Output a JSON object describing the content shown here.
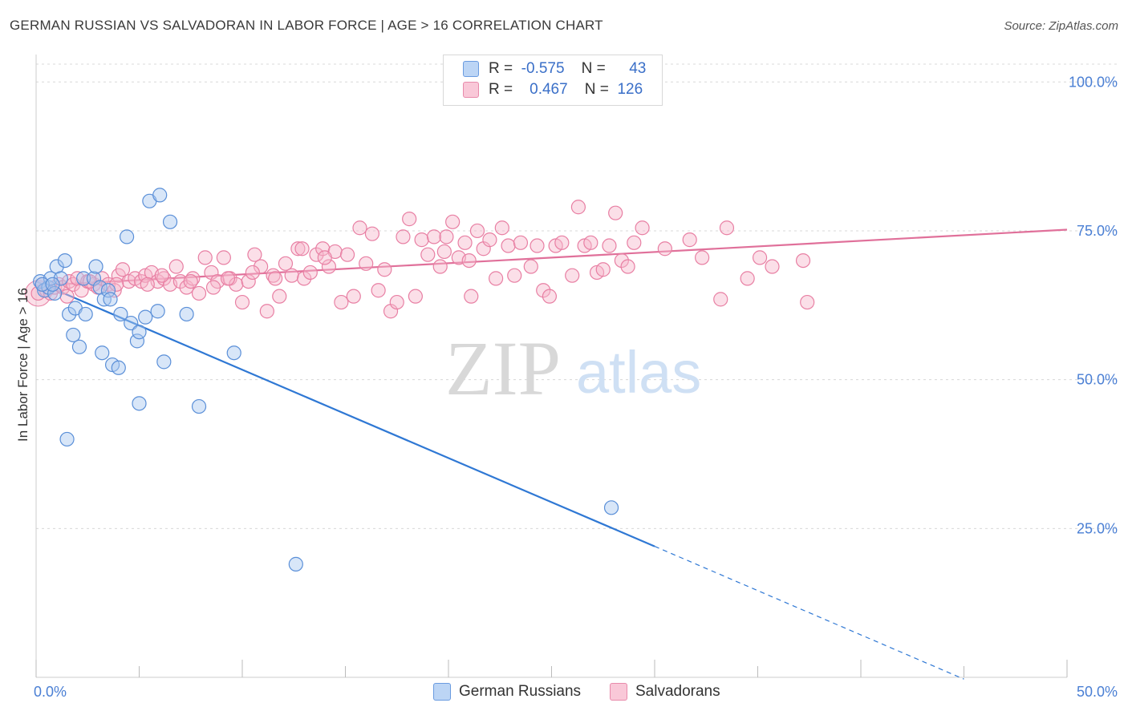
{
  "title": "GERMAN RUSSIAN VS SALVADORAN IN LABOR FORCE | AGE > 16 CORRELATION CHART",
  "source": "Source: ZipAtlas.com",
  "watermark": {
    "zip": "ZIP",
    "atlas": "atlas"
  },
  "legend": {
    "rows": [
      {
        "r_label": "R =",
        "r_value": "-0.575",
        "n_label": "N =",
        "n_value": "43"
      },
      {
        "r_label": "R =",
        "r_value": "0.467",
        "n_label": "N =",
        "n_value": "126"
      }
    ]
  },
  "colors": {
    "blue_fill": "#a8c8f0",
    "blue_stroke": "#5a8fd8",
    "blue_line": "#2f78d4",
    "pink_fill": "#f6b8cc",
    "pink_stroke": "#e87fa3",
    "pink_line": "#e0709a",
    "grid": "#d8d8d8",
    "axis_tick_text": "#4a7fd4"
  },
  "chart_data": {
    "type": "scatter",
    "title": "GERMAN RUSSIAN VS SALVADORAN IN LABOR FORCE | AGE > 16 CORRELATION CHART",
    "xlabel": "",
    "ylabel": "In Labor Force | Age > 16",
    "xlim": [
      0,
      50
    ],
    "ylim": [
      0,
      103
    ],
    "x_ticks": [
      {
        "value": 0,
        "label": "0.0%"
      },
      {
        "value": 50,
        "label": "50.0%"
      }
    ],
    "y_ticks": [
      {
        "value": 25,
        "label": "25.0%"
      },
      {
        "value": 50,
        "label": "50.0%"
      },
      {
        "value": 75,
        "label": "75.0%"
      },
      {
        "value": 100,
        "label": "100.0%"
      }
    ],
    "grid": true,
    "legend_position": "bottom",
    "series": [
      {
        "name": "German Russians",
        "color": "#a8c8f0",
        "points": [
          [
            0.2,
            66.5
          ],
          [
            0.4,
            65.0
          ],
          [
            0.6,
            65.5
          ],
          [
            0.7,
            67.0
          ],
          [
            0.9,
            64.5
          ],
          [
            1.0,
            69.0
          ],
          [
            1.2,
            67.0
          ],
          [
            1.4,
            70.0
          ],
          [
            1.6,
            61.0
          ],
          [
            1.8,
            57.5
          ],
          [
            1.9,
            62.0
          ],
          [
            2.1,
            55.5
          ],
          [
            2.3,
            67.0
          ],
          [
            2.4,
            61.0
          ],
          [
            2.8,
            67.0
          ],
          [
            2.9,
            69.0
          ],
          [
            3.1,
            65.5
          ],
          [
            3.2,
            54.5
          ],
          [
            3.3,
            63.5
          ],
          [
            3.5,
            65.0
          ],
          [
            3.6,
            63.5
          ],
          [
            3.7,
            52.5
          ],
          [
            4.0,
            52.0
          ],
          [
            4.1,
            61.0
          ],
          [
            4.4,
            74.0
          ],
          [
            4.6,
            59.5
          ],
          [
            4.9,
            56.5
          ],
          [
            5.0,
            58.0
          ],
          [
            5.0,
            46.0
          ],
          [
            5.3,
            60.5
          ],
          [
            5.5,
            80.0
          ],
          [
            5.9,
            61.5
          ],
          [
            6.0,
            81.0
          ],
          [
            6.2,
            53.0
          ],
          [
            6.5,
            76.5
          ],
          [
            7.3,
            61.0
          ],
          [
            7.9,
            45.5
          ],
          [
            9.6,
            54.5
          ],
          [
            1.5,
            40.0
          ],
          [
            12.6,
            19.0
          ],
          [
            27.9,
            28.5
          ],
          [
            0.3,
            66.0
          ],
          [
            0.8,
            66.0
          ]
        ],
        "trend": {
          "x0": 0,
          "y0": 66.5,
          "x1": 30.0,
          "y1": 22.0,
          "dash_x1": 45.0,
          "dash_y1": -0.3
        }
      },
      {
        "name": "Salvadorans",
        "color": "#f6b8cc",
        "points": [
          [
            0.1,
            64.5
          ],
          [
            0.3,
            66.0
          ],
          [
            0.5,
            65.0
          ],
          [
            0.7,
            64.5
          ],
          [
            0.9,
            65.5
          ],
          [
            1.1,
            66.0
          ],
          [
            1.3,
            65.5
          ],
          [
            1.6,
            66.5
          ],
          [
            1.8,
            66.0
          ],
          [
            2.0,
            67.0
          ],
          [
            2.2,
            65.0
          ],
          [
            2.5,
            66.5
          ],
          [
            2.8,
            66.0
          ],
          [
            3.0,
            65.5
          ],
          [
            3.2,
            67.0
          ],
          [
            3.5,
            66.0
          ],
          [
            3.8,
            65.0
          ],
          [
            4.0,
            67.5
          ],
          [
            4.2,
            68.5
          ],
          [
            4.5,
            66.5
          ],
          [
            4.8,
            67.0
          ],
          [
            5.1,
            66.5
          ],
          [
            5.3,
            67.5
          ],
          [
            5.6,
            68.0
          ],
          [
            5.9,
            66.5
          ],
          [
            6.2,
            67.0
          ],
          [
            6.5,
            66.0
          ],
          [
            6.8,
            69.0
          ],
          [
            7.0,
            66.5
          ],
          [
            7.3,
            65.5
          ],
          [
            7.6,
            67.0
          ],
          [
            7.9,
            64.5
          ],
          [
            8.2,
            70.5
          ],
          [
            8.5,
            68.0
          ],
          [
            8.8,
            66.5
          ],
          [
            9.1,
            70.5
          ],
          [
            9.4,
            67.0
          ],
          [
            9.7,
            66.0
          ],
          [
            10.0,
            63.0
          ],
          [
            10.3,
            66.5
          ],
          [
            10.6,
            71.0
          ],
          [
            10.9,
            69.0
          ],
          [
            11.2,
            61.5
          ],
          [
            11.5,
            67.5
          ],
          [
            11.8,
            64.0
          ],
          [
            12.1,
            69.5
          ],
          [
            12.4,
            67.5
          ],
          [
            12.7,
            72.0
          ],
          [
            13.0,
            67.0
          ],
          [
            13.3,
            68.0
          ],
          [
            13.6,
            71.0
          ],
          [
            13.9,
            72.0
          ],
          [
            14.2,
            69.0
          ],
          [
            14.5,
            71.5
          ],
          [
            14.8,
            63.0
          ],
          [
            15.1,
            71.0
          ],
          [
            15.4,
            64.0
          ],
          [
            15.7,
            75.5
          ],
          [
            16.0,
            69.5
          ],
          [
            16.3,
            74.5
          ],
          [
            16.6,
            65.0
          ],
          [
            16.9,
            68.5
          ],
          [
            17.2,
            61.5
          ],
          [
            17.5,
            63.0
          ],
          [
            17.8,
            74.0
          ],
          [
            18.1,
            77.0
          ],
          [
            18.4,
            64.0
          ],
          [
            18.7,
            73.5
          ],
          [
            19.0,
            71.0
          ],
          [
            19.3,
            74.0
          ],
          [
            19.6,
            69.0
          ],
          [
            19.9,
            74.0
          ],
          [
            20.2,
            76.5
          ],
          [
            20.5,
            70.5
          ],
          [
            20.8,
            73.0
          ],
          [
            21.1,
            64.0
          ],
          [
            21.4,
            75.0
          ],
          [
            21.7,
            72.0
          ],
          [
            22.0,
            73.5
          ],
          [
            22.3,
            67.0
          ],
          [
            22.6,
            75.5
          ],
          [
            22.9,
            72.5
          ],
          [
            23.2,
            67.5
          ],
          [
            23.5,
            73.0
          ],
          [
            24.0,
            69.0
          ],
          [
            24.3,
            72.5
          ],
          [
            24.6,
            65.0
          ],
          [
            24.9,
            64.0
          ],
          [
            25.2,
            72.5
          ],
          [
            25.5,
            73.0
          ],
          [
            26.0,
            67.5
          ],
          [
            26.3,
            79.0
          ],
          [
            26.6,
            72.5
          ],
          [
            26.9,
            73.0
          ],
          [
            27.2,
            68.0
          ],
          [
            27.5,
            68.5
          ],
          [
            27.8,
            72.5
          ],
          [
            28.1,
            78.0
          ],
          [
            28.4,
            70.0
          ],
          [
            28.7,
            69.0
          ],
          [
            29.0,
            73.0
          ],
          [
            29.4,
            75.5
          ],
          [
            30.5,
            72.0
          ],
          [
            31.7,
            73.5
          ],
          [
            32.3,
            70.5
          ],
          [
            33.2,
            63.5
          ],
          [
            33.5,
            75.5
          ],
          [
            34.5,
            67.0
          ],
          [
            35.1,
            70.5
          ],
          [
            35.7,
            69.0
          ],
          [
            37.2,
            70.0
          ],
          [
            37.4,
            63.0
          ],
          [
            1.5,
            64.0
          ],
          [
            2.6,
            66.5
          ],
          [
            3.9,
            66.0
          ],
          [
            5.4,
            66.0
          ],
          [
            6.1,
            67.5
          ],
          [
            7.5,
            66.5
          ],
          [
            8.6,
            65.5
          ],
          [
            9.3,
            67.0
          ],
          [
            10.5,
            68.0
          ],
          [
            11.6,
            67.0
          ],
          [
            12.9,
            72.0
          ],
          [
            14.0,
            70.5
          ],
          [
            19.8,
            71.5
          ],
          [
            21.0,
            70.0
          ]
        ],
        "trend": {
          "x0": 0,
          "y0": 65.8,
          "x1": 50,
          "y1": 75.2
        }
      }
    ]
  }
}
